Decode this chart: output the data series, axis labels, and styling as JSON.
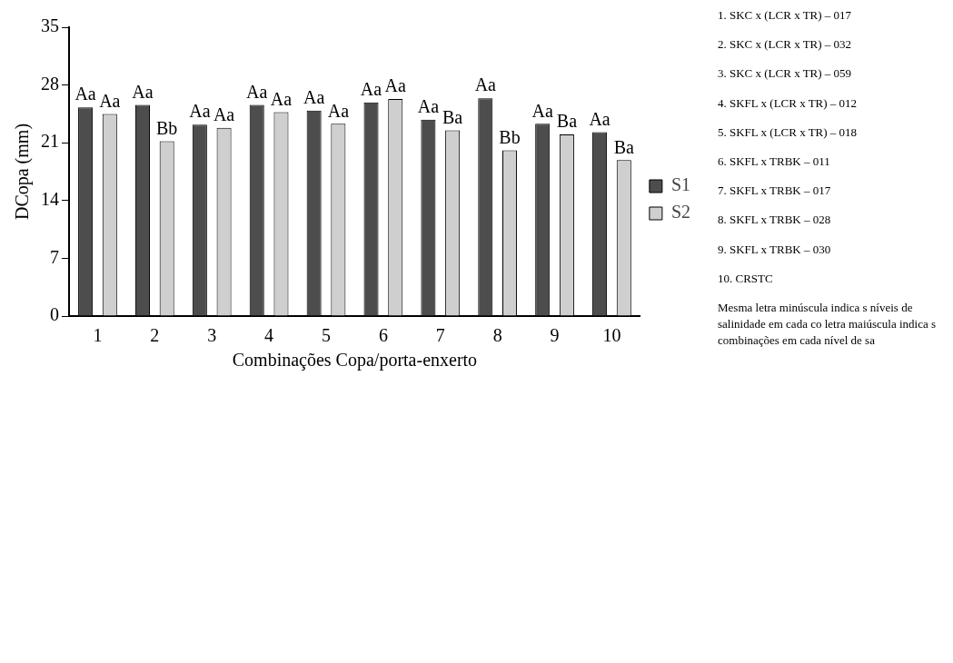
{
  "chart_data": {
    "type": "bar",
    "xlabel": "Combinações Copa/porta-enxerto",
    "ylabel": "DCopa (mm)",
    "categories": [
      "1",
      "2",
      "3",
      "4",
      "5",
      "6",
      "7",
      "8",
      "9",
      "10"
    ],
    "series": [
      {
        "name": "S1",
        "color": "#4d4d4d",
        "values": [
          25.3,
          25.6,
          23.2,
          25.6,
          24.9,
          25.9,
          23.8,
          26.4,
          23.3,
          22.3
        ],
        "value_labels": [
          "Aa",
          "Aa",
          "Aa",
          "Aa",
          "Aa",
          "Aa",
          "Aa",
          "Aa",
          "Aa",
          "Aa"
        ]
      },
      {
        "name": "S2",
        "color": "#cfcfcf",
        "values": [
          24.5,
          21.2,
          22.8,
          24.7,
          23.3,
          26.3,
          22.5,
          20.1,
          22.0,
          18.9
        ],
        "value_labels": [
          "Aa",
          "Bb",
          "Aa",
          "Aa",
          "Aa",
          "Aa",
          "Ba",
          "Bb",
          "Ba",
          "Ba"
        ]
      }
    ],
    "ylim": [
      0,
      35
    ],
    "yticks": [
      0,
      7,
      14,
      21,
      28,
      35
    ],
    "grid": false,
    "legend": "right",
    "annotations": [
      "1. SKC x (LCR x TR) – 017",
      "2. SKC x (LCR x TR) – 032",
      "3. SKC x (LCR x TR) – 059",
      "4. SKFL x (LCR x TR) – 012",
      "5. SKFL x (LCR x TR) – 018",
      "6. SKFL x TRBK – 011",
      "7. SKFL x TRBK – 017",
      "8. SKFL x TRBK – 028",
      "9. SKFL x TRBK – 030",
      "10. CRSTC",
      "Mesma letra minúscula indica s níveis de salinidade em cada co letra maiúscula indica s combinações em cada nível de sa"
    ]
  }
}
